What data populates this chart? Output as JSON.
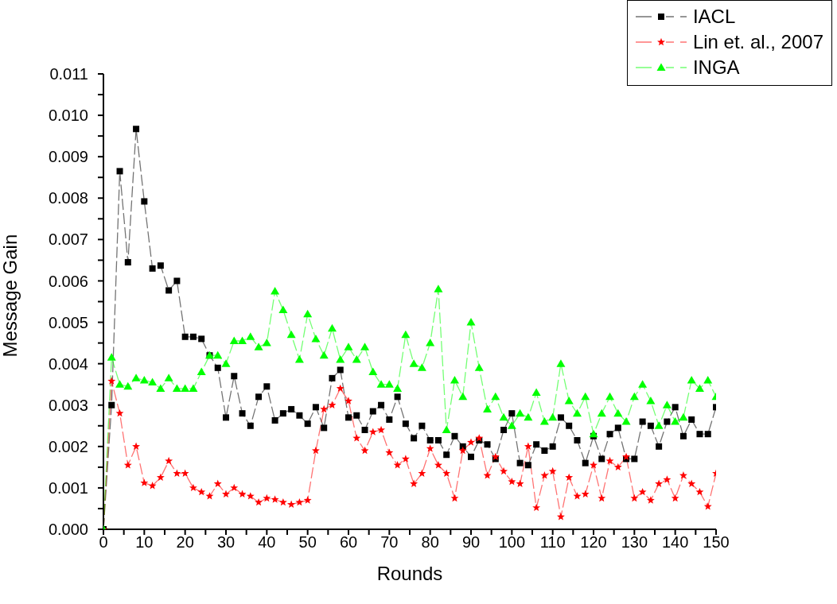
{
  "chart_data": {
    "type": "line",
    "xlabel": "Rounds",
    "ylabel": "Message Gain",
    "x": [
      0,
      2,
      4,
      6,
      8,
      10,
      12,
      14,
      16,
      18,
      20,
      22,
      24,
      26,
      28,
      30,
      32,
      34,
      36,
      38,
      40,
      42,
      44,
      46,
      48,
      50,
      52,
      54,
      56,
      58,
      60,
      62,
      64,
      66,
      68,
      70,
      72,
      74,
      76,
      78,
      80,
      82,
      84,
      86,
      88,
      90,
      92,
      94,
      96,
      98,
      100,
      102,
      104,
      106,
      108,
      110,
      112,
      114,
      116,
      118,
      120,
      122,
      124,
      126,
      128,
      130,
      132,
      134,
      136,
      138,
      140,
      142,
      144,
      146,
      148,
      150
    ],
    "series": [
      {
        "name": "IACL",
        "color": "#000000",
        "marker": "square",
        "values": [
          0,
          0.003,
          0.00865,
          0.00645,
          0.00967,
          0.00792,
          0.0063,
          0.00637,
          0.00577,
          0.006,
          0.00465,
          0.00465,
          0.0046,
          0.0042,
          0.0039,
          0.0027,
          0.0037,
          0.0028,
          0.0025,
          0.0032,
          0.00345,
          0.00263,
          0.0028,
          0.0029,
          0.00275,
          0.00255,
          0.00295,
          0.00245,
          0.00365,
          0.00385,
          0.0027,
          0.00275,
          0.0024,
          0.00285,
          0.003,
          0.00265,
          0.0032,
          0.00255,
          0.0022,
          0.0025,
          0.00215,
          0.00215,
          0.0018,
          0.00225,
          0.002,
          0.00175,
          0.00215,
          0.00205,
          0.0017,
          0.0024,
          0.0028,
          0.0016,
          0.00155,
          0.00205,
          0.0019,
          0.002,
          0.0027,
          0.0025,
          0.00215,
          0.0016,
          0.00225,
          0.0017,
          0.0023,
          0.00245,
          0.0017,
          0.0017,
          0.0026,
          0.0025,
          0.002,
          0.0026,
          0.00295,
          0.00225,
          0.00265,
          0.0023,
          0.0023,
          0.00295
        ]
      },
      {
        "name": "Lin et. al., 2007",
        "color": "#ff0000",
        "marker": "star",
        "values": [
          0,
          0.00358,
          0.0028,
          0.00155,
          0.002,
          0.00112,
          0.00105,
          0.00125,
          0.00165,
          0.00135,
          0.00135,
          0.001,
          0.0009,
          0.0008,
          0.0011,
          0.00085,
          0.001,
          0.00085,
          0.0008,
          0.00065,
          0.00075,
          0.00072,
          0.00065,
          0.0006,
          0.00065,
          0.0007,
          0.0019,
          0.0029,
          0.003,
          0.0034,
          0.0031,
          0.0022,
          0.0019,
          0.00235,
          0.0024,
          0.00185,
          0.00155,
          0.0017,
          0.0011,
          0.00135,
          0.00195,
          0.00155,
          0.00135,
          0.00075,
          0.0019,
          0.0021,
          0.0022,
          0.0013,
          0.00175,
          0.0014,
          0.00115,
          0.0011,
          0.002,
          0.00052,
          0.0013,
          0.0014,
          0.0003,
          0.00125,
          0.0008,
          0.00085,
          0.00155,
          0.00075,
          0.00165,
          0.0015,
          0.00175,
          0.00075,
          0.0009,
          0.0007,
          0.0011,
          0.0012,
          0.00075,
          0.0013,
          0.0011,
          0.0009,
          0.00055,
          0.00135
        ]
      },
      {
        "name": "INGA",
        "color": "#00ff00",
        "marker": "triangle",
        "values": [
          0,
          0.00415,
          0.0035,
          0.00345,
          0.00365,
          0.0036,
          0.00355,
          0.0034,
          0.00365,
          0.0034,
          0.0034,
          0.0034,
          0.0038,
          0.0042,
          0.0042,
          0.004,
          0.00455,
          0.00455,
          0.00465,
          0.0044,
          0.0045,
          0.00575,
          0.0053,
          0.0047,
          0.0041,
          0.0052,
          0.0046,
          0.0042,
          0.00485,
          0.0041,
          0.0044,
          0.0041,
          0.0044,
          0.0038,
          0.0035,
          0.0035,
          0.0034,
          0.0047,
          0.004,
          0.0039,
          0.0045,
          0.0058,
          0.0024,
          0.0036,
          0.0032,
          0.005,
          0.0039,
          0.0029,
          0.0032,
          0.0027,
          0.0025,
          0.0028,
          0.0027,
          0.0033,
          0.0026,
          0.0027,
          0.004,
          0.0031,
          0.0028,
          0.0032,
          0.0023,
          0.0028,
          0.0032,
          0.0028,
          0.0026,
          0.0032,
          0.0035,
          0.0031,
          0.0025,
          0.003,
          0.0026,
          0.0027,
          0.0036,
          0.0034,
          0.0036,
          0.0032
        ]
      }
    ],
    "xlim": [
      0,
      150
    ],
    "xticks": [
      0,
      {
        "value": 5,
        "label": null
      },
      10,
      {
        "value": 15,
        "label": null
      },
      20,
      {
        "value": 25,
        "label": null
      },
      30,
      {
        "value": 35,
        "label": null
      },
      40,
      {
        "value": 45,
        "label": null
      },
      50,
      {
        "value": 55,
        "label": null
      },
      60,
      {
        "value": 65,
        "label": null
      },
      70,
      {
        "value": 75,
        "label": null
      },
      80,
      {
        "value": 85,
        "label": null
      },
      90,
      {
        "value": 95,
        "label": null
      },
      100,
      {
        "value": 105,
        "label": null
      },
      110,
      {
        "value": 115,
        "label": null
      },
      120,
      {
        "value": 125,
        "label": null
      },
      130,
      {
        "value": 135,
        "label": null
      },
      140,
      {
        "value": 145,
        "label": null
      },
      150
    ],
    "ylim": [
      0,
      0.011
    ],
    "yticks": [
      {
        "value": 0,
        "label": "0.000"
      },
      {
        "value": 0.0005,
        "label": null
      },
      {
        "value": 0.001,
        "label": "0.001"
      },
      {
        "value": 0.0015,
        "label": null
      },
      {
        "value": 0.002,
        "label": "0.002"
      },
      {
        "value": 0.0025,
        "label": null
      },
      {
        "value": 0.003,
        "label": "0.003"
      },
      {
        "value": 0.0035,
        "label": null
      },
      {
        "value": 0.004,
        "label": "0.004"
      },
      {
        "value": 0.0045,
        "label": null
      },
      {
        "value": 0.005,
        "label": "0.005"
      },
      {
        "value": 0.0055,
        "label": null
      },
      {
        "value": 0.006,
        "label": "0.006"
      },
      {
        "value": 0.0065,
        "label": null
      },
      {
        "value": 0.007,
        "label": "0.007"
      },
      {
        "value": 0.0075,
        "label": null
      },
      {
        "value": 0.008,
        "label": "0.008"
      },
      {
        "value": 0.0085,
        "label": null
      },
      {
        "value": 0.009,
        "label": "0.009"
      },
      {
        "value": 0.0095,
        "label": null
      },
      {
        "value": 0.01,
        "label": "0.010"
      },
      {
        "value": 0.0105,
        "label": null
      },
      {
        "value": 0.011,
        "label": "0.011"
      }
    ],
    "grid": false,
    "legend": "top right",
    "line_style": "dashed"
  }
}
